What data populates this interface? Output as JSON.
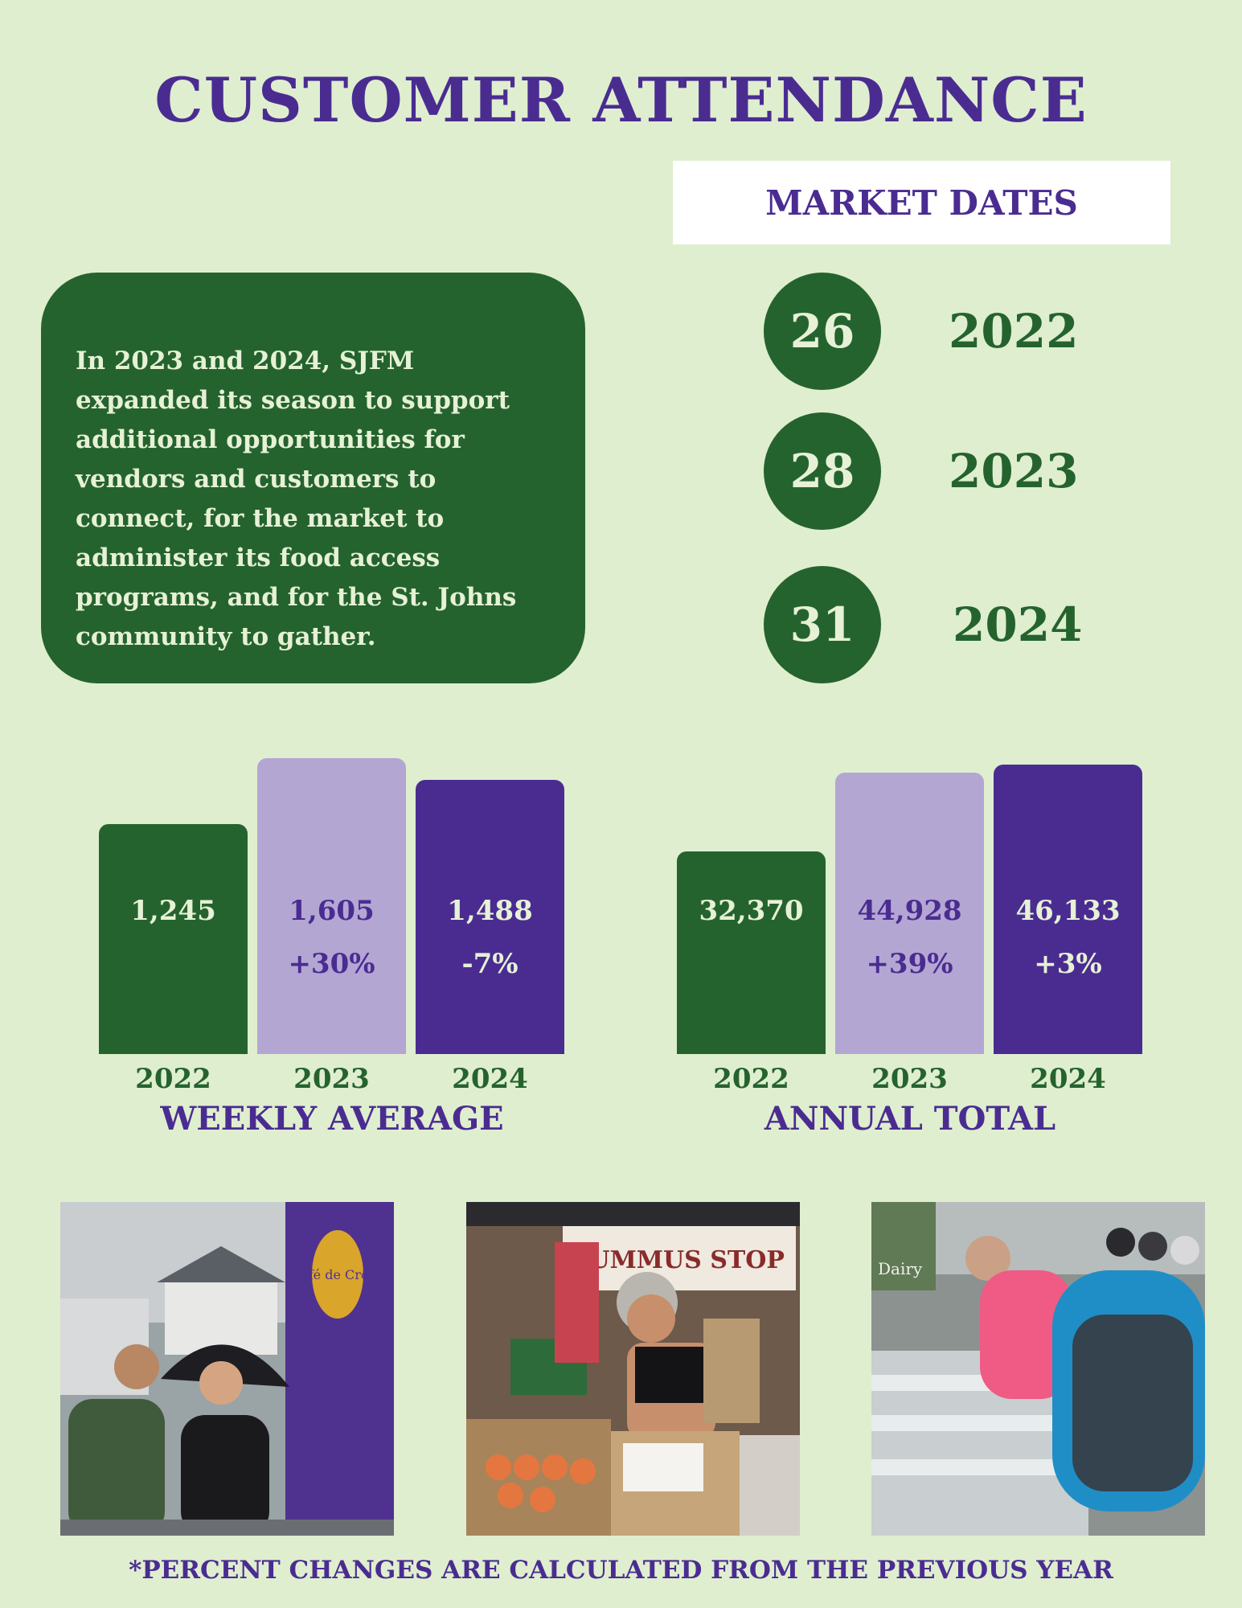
{
  "title": "CUSTOMER ATTENDANCE",
  "market_dates": {
    "header": "MARKET DATES",
    "rows": [
      {
        "count": "26",
        "year": "2022"
      },
      {
        "count": "28",
        "year": "2023"
      },
      {
        "count": "31",
        "year": "2024"
      }
    ]
  },
  "intro_text": "In 2023 and 2024, SJFM expanded its season to support additional opportunities for vendors and customers to connect, for the market to administer its food access programs, and for the St. Johns community to gather.",
  "colors": {
    "background": "#dfeecf",
    "green": "#25632e",
    "light_purple": "#b3a6d3",
    "purple": "#4a2c91",
    "light_text": "#e6f1d6"
  },
  "chart_data": [
    {
      "type": "bar",
      "title": "WEEKLY AVERAGE",
      "categories": [
        "2022",
        "2023",
        "2024"
      ],
      "values": [
        1245,
        1605,
        1488
      ],
      "value_labels": [
        "1,245",
        "1,605",
        "1,488"
      ],
      "change_labels": [
        "",
        "+30%",
        "-7%"
      ],
      "colors": [
        "#25632e",
        "#b3a6d3",
        "#4a2c91"
      ]
    },
    {
      "type": "bar",
      "title": "ANNUAL TOTAL",
      "categories": [
        "2022",
        "2023",
        "2024"
      ],
      "values": [
        32370,
        44928,
        46133
      ],
      "value_labels": [
        "32,370",
        "44,928",
        "46,133"
      ],
      "change_labels": [
        "",
        "+39%",
        "+3%"
      ],
      "colors": [
        "#25632e",
        "#b3a6d3",
        "#4a2c91"
      ]
    }
  ],
  "photos": [
    {
      "icon": "market-photo-umbrella-couple",
      "sign_text": "Café de Crêpe"
    },
    {
      "icon": "market-photo-peach-vendor",
      "sign_text": "HUMMUS STOP"
    },
    {
      "icon": "market-photo-dairy-shoppers",
      "sign_text": "Dairy"
    }
  ],
  "footnote": "*PERCENT CHANGES ARE CALCULATED FROM THE PREVIOUS YEAR"
}
